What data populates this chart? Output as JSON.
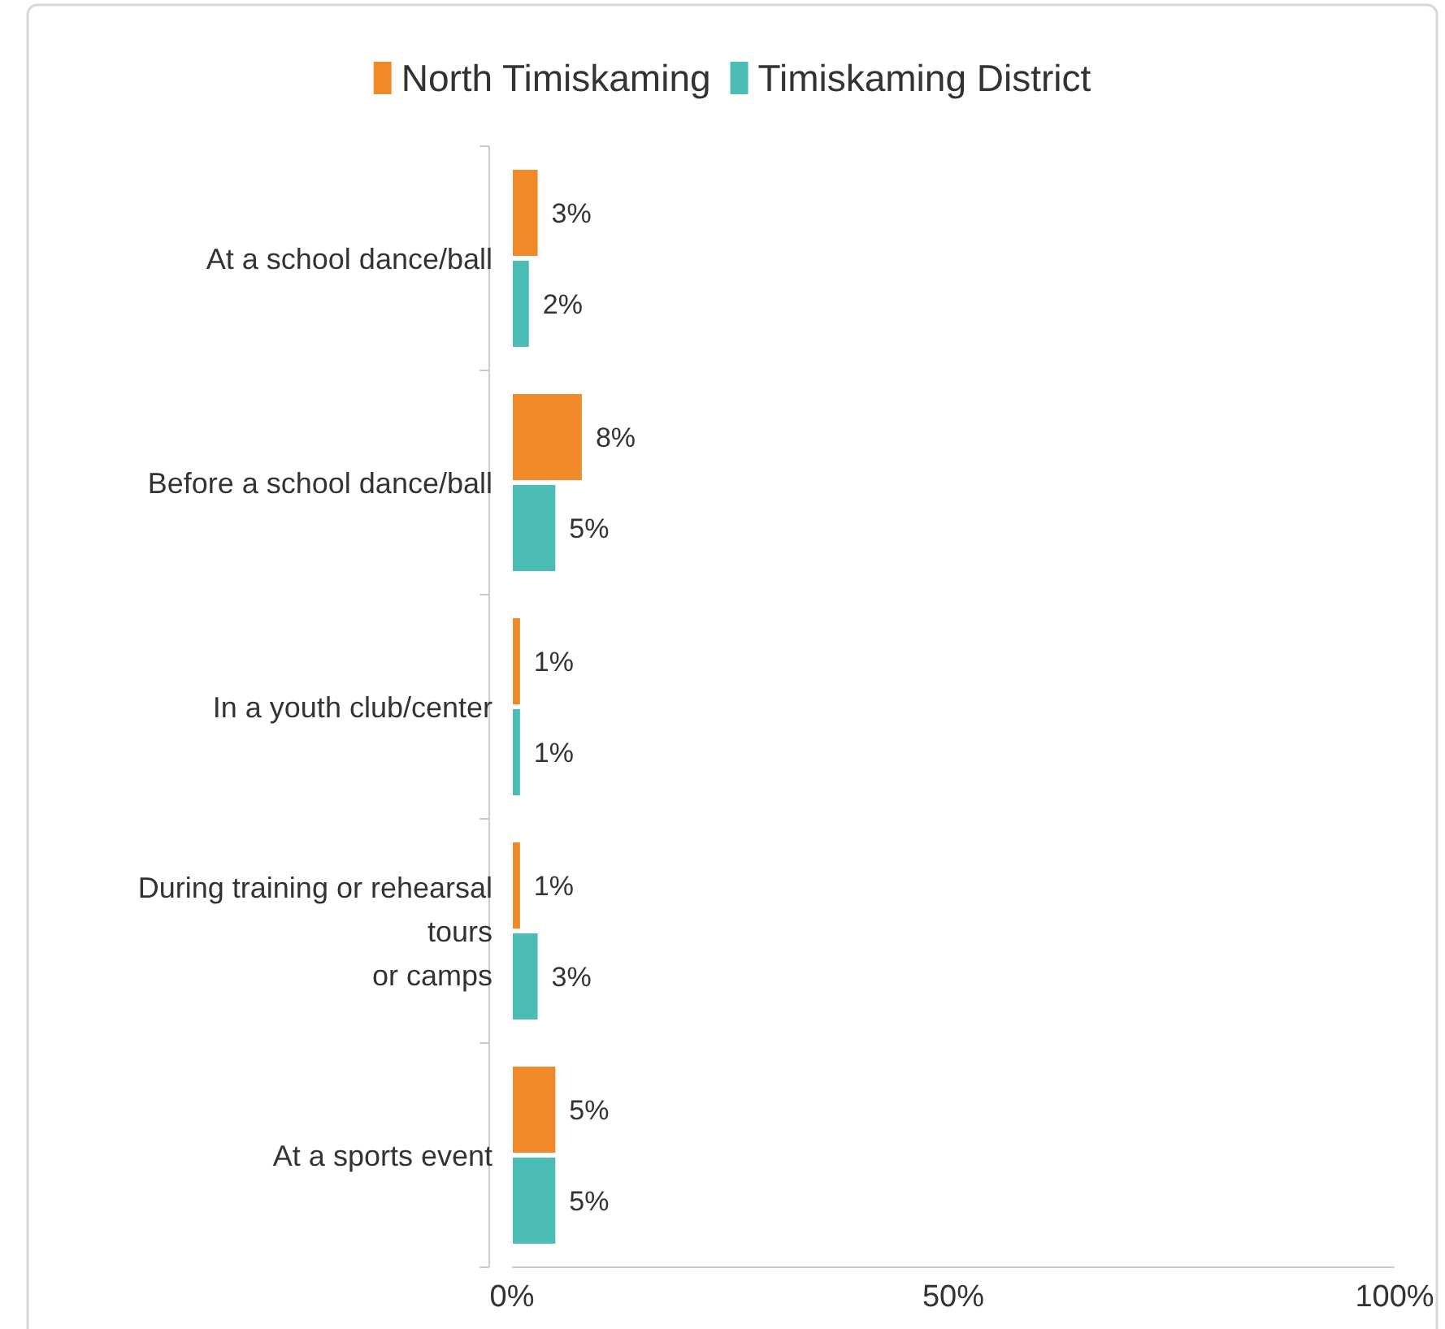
{
  "chart_data": {
    "type": "bar",
    "orientation": "horizontal",
    "categories": [
      "At a school dance/ball",
      "Before a school dance/ball",
      "In a youth club/center",
      "During training or rehearsal tours\nor camps",
      "At a sports event"
    ],
    "series": [
      {
        "name": "North Timiskaming",
        "color": "#f0892a",
        "values": [
          3,
          8,
          1,
          1,
          5
        ],
        "value_labels": [
          "3%",
          "8%",
          "1%",
          "1%",
          "5%"
        ]
      },
      {
        "name": "Timiskaming District",
        "color": "#4cbdb5",
        "values": [
          2,
          5,
          1,
          3,
          5
        ],
        "value_labels": [
          "2%",
          "5%",
          "1%",
          "3%",
          "5%"
        ]
      }
    ],
    "xlim": [
      0,
      100
    ],
    "xticks": [
      {
        "value": 0,
        "label": "0%"
      },
      {
        "value": 50,
        "label": "50%"
      },
      {
        "value": 100,
        "label": "100%"
      }
    ],
    "legend": "top",
    "grid": false
  }
}
